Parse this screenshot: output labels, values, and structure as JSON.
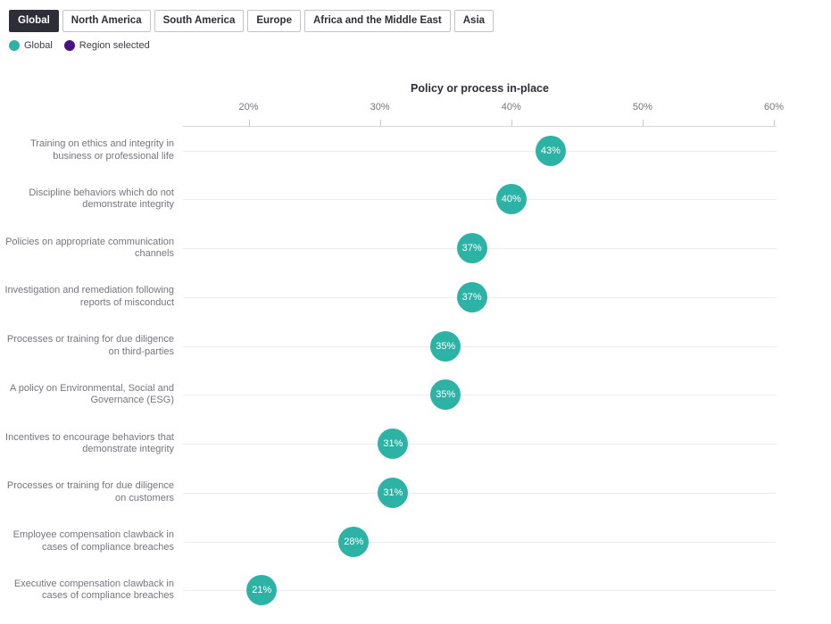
{
  "tabs": {
    "items": [
      {
        "label": "Global",
        "selected": true
      },
      {
        "label": "North America",
        "selected": false
      },
      {
        "label": "South America",
        "selected": false
      },
      {
        "label": "Europe",
        "selected": false
      },
      {
        "label": "Africa and the Middle East",
        "selected": false
      },
      {
        "label": "Asia",
        "selected": false
      }
    ]
  },
  "legend": {
    "items": [
      {
        "label": "Global",
        "color": "#2db3a6"
      },
      {
        "label": "Region selected",
        "color": "#4a1187"
      }
    ]
  },
  "chart_data": {
    "type": "scatter",
    "title": "Policy or process in-place",
    "categories": [
      "Training on ethics and integrity in business or professional life",
      "Discipline behaviors which do not demonstrate integrity",
      "Policies on appropriate communication channels",
      "Investigation and remediation following reports of misconduct",
      "Processes or training for due diligence on third-parties",
      "A policy on Environmental, Social and Governance (ESG)",
      "Incentives to encourage behaviors that demonstrate integrity",
      "Processes or training for due diligence on customers",
      "Employee compensation clawback in cases of compliance breaches",
      "Executive compensation clawback in cases of compliance breaches"
    ],
    "series": [
      {
        "name": "Global",
        "color": "#2db3a6",
        "values": [
          43,
          40,
          37,
          37,
          35,
          35,
          31,
          31,
          28,
          21
        ]
      }
    ],
    "value_suffix": "%",
    "x_tick_labels": [
      "20%",
      "30%",
      "40%",
      "50%",
      "60%"
    ],
    "x_tick_values": [
      20,
      30,
      40,
      50,
      60
    ],
    "xlim": [
      15,
      60.2
    ],
    "xlabel": "",
    "ylabel": "",
    "grid": "horizontal gridline per category plus top axis line",
    "legend_position": "top-left above chart",
    "data_labels": "percentage value inside circular marker"
  },
  "colors": {
    "accent_teal": "#2db3a6",
    "accent_purple": "#4a1187",
    "tab_selected_bg": "#2e2e38",
    "text_dark": "#2e2e38",
    "text_gray": "#75757f"
  }
}
